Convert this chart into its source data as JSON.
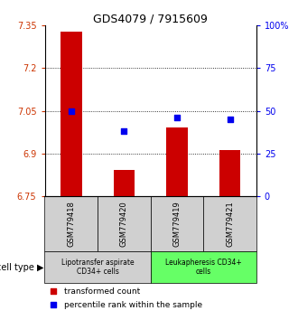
{
  "title": "GDS4079 / 7915609",
  "samples": [
    "GSM779418",
    "GSM779420",
    "GSM779419",
    "GSM779421"
  ],
  "bar_values": [
    7.33,
    6.84,
    6.99,
    6.91
  ],
  "bar_baseline": 6.75,
  "percentile_values": [
    50,
    38,
    46,
    45
  ],
  "ylim_left": [
    6.75,
    7.35
  ],
  "ylim_right": [
    0,
    100
  ],
  "yticks_left": [
    6.75,
    6.9,
    7.05,
    7.2,
    7.35
  ],
  "ytick_labels_left": [
    "6.75",
    "6.9",
    "7.05",
    "7.2",
    "7.35"
  ],
  "yticks_right": [
    0,
    25,
    50,
    75,
    100
  ],
  "ytick_labels_right": [
    "0",
    "25",
    "50",
    "75",
    "100%"
  ],
  "hlines": [
    7.2,
    7.05,
    6.9
  ],
  "bar_color": "#cc0000",
  "dot_color": "#0000ee",
  "left_tick_color": "#cc3300",
  "right_tick_color": "#0000ee",
  "group1_label": "Lipotransfer aspirate\nCD34+ cells",
  "group2_label": "Leukapheresis CD34+\ncells",
  "group1_indices": [
    0,
    1
  ],
  "group2_indices": [
    2,
    3
  ],
  "group1_color": "#d0d0d0",
  "group2_color": "#66ff66",
  "cell_type_label": "cell type",
  "legend_bar_label": "transformed count",
  "legend_dot_label": "percentile rank within the sample",
  "bar_width": 0.4
}
